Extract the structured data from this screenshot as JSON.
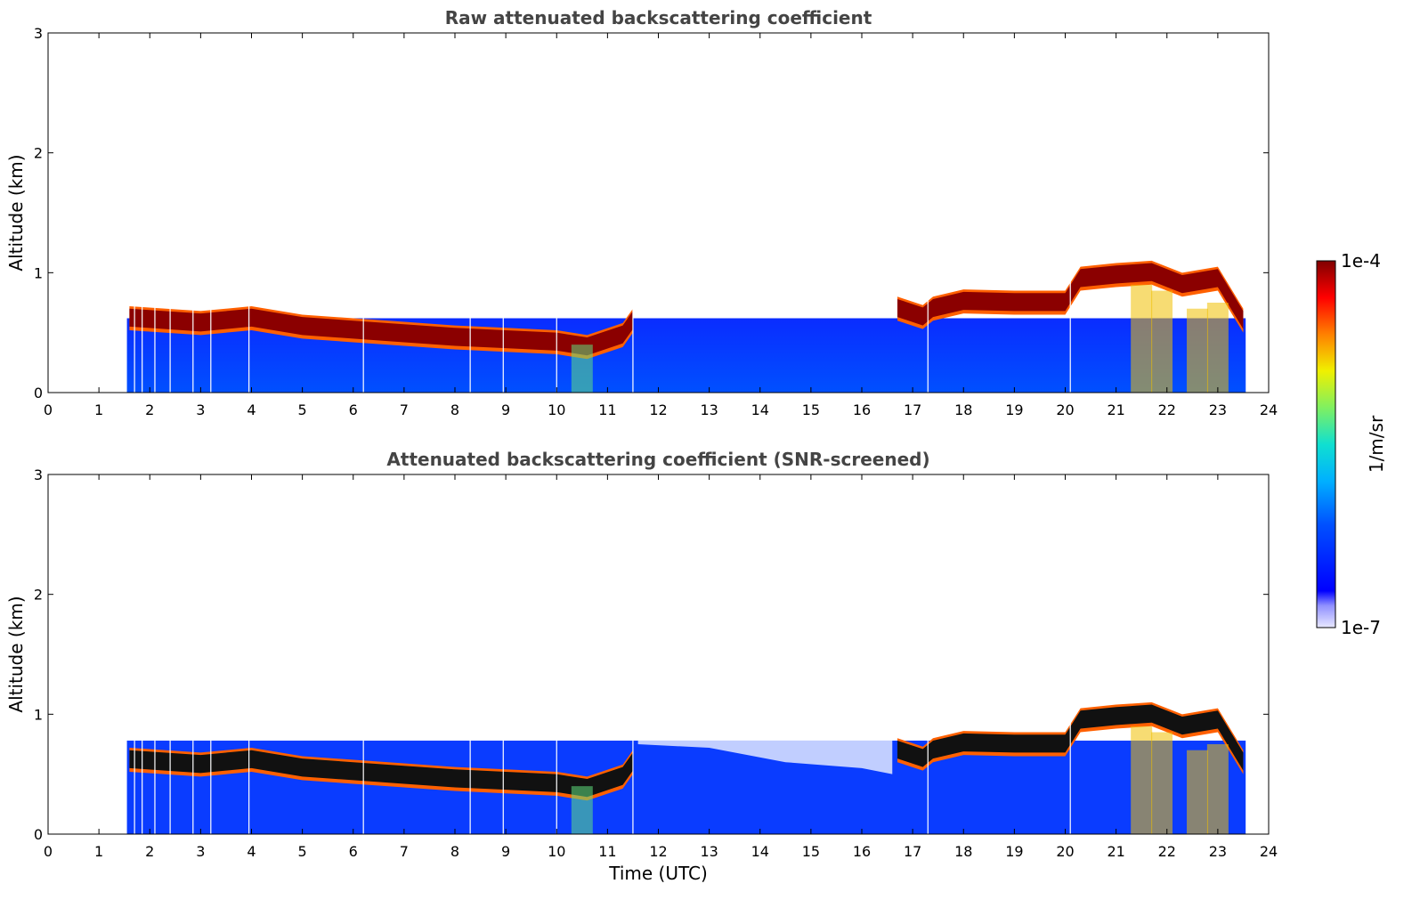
{
  "chart_data": [
    {
      "type": "heatmap",
      "title": "Raw attenuated backscattering coefficient",
      "xlabel": "",
      "ylabel": "Altitude (km)",
      "xlim": [
        0,
        24
      ],
      "ylim": [
        0,
        3
      ],
      "x_ticks": [
        "0",
        "1",
        "2",
        "3",
        "4",
        "5",
        "6",
        "7",
        "8",
        "9",
        "10",
        "11",
        "12",
        "13",
        "14",
        "15",
        "16",
        "17",
        "18",
        "19",
        "20",
        "21",
        "22",
        "23",
        "24"
      ],
      "y_ticks": [
        "0",
        "1",
        "2",
        "3"
      ],
      "data_time_range": [
        1.55,
        23.55
      ],
      "layer_top_km": [
        {
          "t": 1.6,
          "h": 0.72
        },
        {
          "t": 3.0,
          "h": 0.68
        },
        {
          "t": 4.0,
          "h": 0.72
        },
        {
          "t": 5.0,
          "h": 0.65
        },
        {
          "t": 6.0,
          "h": 0.62
        },
        {
          "t": 7.0,
          "h": 0.59
        },
        {
          "t": 8.0,
          "h": 0.56
        },
        {
          "t": 9.0,
          "h": 0.54
        },
        {
          "t": 10.0,
          "h": 0.52
        },
        {
          "t": 10.6,
          "h": 0.48
        },
        {
          "t": 11.3,
          "h": 0.58
        },
        {
          "t": 11.5,
          "h": 0.7
        }
      ],
      "layer2_top_km": [
        {
          "t": 16.7,
          "h": 0.8
        },
        {
          "t": 17.2,
          "h": 0.73
        },
        {
          "t": 17.4,
          "h": 0.8
        },
        {
          "t": 18.0,
          "h": 0.86
        },
        {
          "t": 19.0,
          "h": 0.85
        },
        {
          "t": 20.0,
          "h": 0.85
        },
        {
          "t": 20.3,
          "h": 1.05
        },
        {
          "t": 21.0,
          "h": 1.08
        },
        {
          "t": 21.7,
          "h": 1.1
        },
        {
          "t": 22.3,
          "h": 1.0
        },
        {
          "t": 23.0,
          "h": 1.05
        },
        {
          "t": 23.5,
          "h": 0.7
        }
      ]
    },
    {
      "type": "heatmap",
      "title": "Attenuated backscattering coefficient (SNR-screened)",
      "xlabel": "Time (UTC)",
      "ylabel": "Altitude (km)",
      "xlim": [
        0,
        24
      ],
      "ylim": [
        0,
        3
      ],
      "x_ticks": [
        "0",
        "1",
        "2",
        "3",
        "4",
        "5",
        "6",
        "7",
        "8",
        "9",
        "10",
        "11",
        "12",
        "13",
        "14",
        "15",
        "16",
        "17",
        "18",
        "19",
        "20",
        "21",
        "22",
        "23",
        "24"
      ],
      "y_ticks": [
        "0",
        "1",
        "2",
        "3"
      ],
      "data_time_range": [
        1.55,
        23.55
      ]
    }
  ],
  "colorbar": {
    "label": "1/m/sr",
    "max_label": "1e-4",
    "min_label": "1e-7",
    "colors": [
      "#e8e8ff",
      "#b0b0ff",
      "#6060ff",
      "#0000ff",
      "#0040ff",
      "#0090ff",
      "#00c8ff",
      "#20e0c0",
      "#60f080",
      "#b0f040",
      "#f0f000",
      "#ffb000",
      "#ff6000",
      "#ff0000",
      "#c00000",
      "#800000"
    ]
  }
}
